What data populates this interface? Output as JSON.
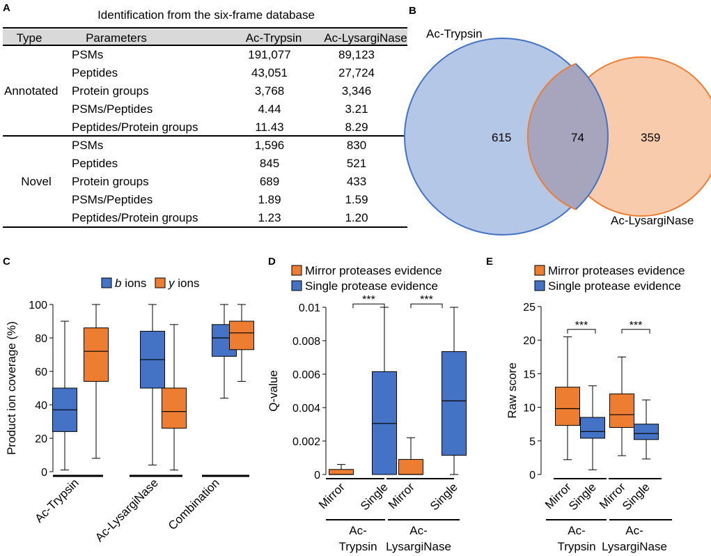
{
  "panel_labels": [
    "A",
    "B",
    "C",
    "D",
    "E"
  ],
  "colors": {
    "blue": "#4472c4",
    "orange": "#ed7d31",
    "venn_blue_fill": "#b4c7e7",
    "venn_orange_fill": "#f8cbad",
    "venn_overlap_fill": "#a7a5bd"
  },
  "chart_data": [
    {
      "panel": "A",
      "type": "table",
      "title": "Identification from the six-frame database",
      "columns": [
        "Type",
        "Parameters",
        "Ac-Trypsin",
        "Ac-LysargiNase"
      ],
      "groups": [
        {
          "type": "Annotated",
          "rows": [
            [
              "PSMs",
              "191,077",
              "89,123"
            ],
            [
              "Peptides",
              "43,051",
              "27,724"
            ],
            [
              "Protein groups",
              "3,768",
              "3,346"
            ],
            [
              "PSMs/Peptides",
              "4.44",
              "3.21"
            ],
            [
              "Peptides/Protein groups",
              "11.43",
              "8.29"
            ]
          ]
        },
        {
          "type": "Novel",
          "rows": [
            [
              "PSMs",
              "1,596",
              "830"
            ],
            [
              "Peptides",
              "845",
              "521"
            ],
            [
              "Protein groups",
              "689",
              "433"
            ],
            [
              "PSMs/Peptides",
              "1.89",
              "1.59"
            ],
            [
              "Peptides/Protein groups",
              "1.23",
              "1.20"
            ]
          ]
        }
      ]
    },
    {
      "panel": "B",
      "type": "venn",
      "sets": [
        "Ac-Trypsin",
        "Ac-LysargiNase"
      ],
      "values": {
        "only_a": 615,
        "both": 74,
        "only_b": 359
      }
    },
    {
      "panel": "C",
      "type": "boxplot",
      "ylabel": "Product ion coverage (%)",
      "ylim": [
        0,
        100
      ],
      "yticks": [
        0,
        20,
        40,
        60,
        80,
        100
      ],
      "legend": [
        {
          "ital": "b",
          "rest": " ions",
          "color": "blue"
        },
        {
          "ital": "y",
          "rest": " ions",
          "color": "orange"
        }
      ],
      "groups": [
        "Ac-Trypsin",
        "Ac-LysargiNase",
        "Combination"
      ],
      "boxes": [
        {
          "group": 0,
          "series": "b ions",
          "color": "blue",
          "min": 1,
          "q1": 24,
          "median": 37,
          "q3": 50,
          "max": 90
        },
        {
          "group": 0,
          "series": "y ions",
          "color": "orange",
          "min": 8,
          "q1": 54,
          "median": 72,
          "q3": 86,
          "max": 100
        },
        {
          "group": 1,
          "series": "b ions",
          "color": "blue",
          "min": 4,
          "q1": 50,
          "median": 67,
          "q3": 84,
          "max": 100
        },
        {
          "group": 1,
          "series": "y ions",
          "color": "orange",
          "min": 1,
          "q1": 26,
          "median": 36,
          "q3": 50,
          "max": 88
        },
        {
          "group": 2,
          "series": "b ions",
          "color": "blue",
          "min": 44,
          "q1": 69,
          "median": 80,
          "q3": 88,
          "max": 100
        },
        {
          "group": 2,
          "series": "y ions",
          "color": "orange",
          "min": 54,
          "q1": 73,
          "median": 83,
          "q3": 90,
          "max": 100
        }
      ]
    },
    {
      "panel": "D",
      "type": "boxplot",
      "ylabel": "Q-value",
      "ylim": [
        0,
        0.01
      ],
      "yticks": [
        "0",
        "0.002",
        "0.004",
        "0.006",
        "0.008",
        "0.01"
      ],
      "legend": [
        {
          "text": "Mirror proteases evidence",
          "color": "orange"
        },
        {
          "text": "Single protease evidence",
          "color": "blue"
        }
      ],
      "sig": "***",
      "subgroups": [
        "Mirror",
        "Single"
      ],
      "groups": [
        [
          "Ac-",
          "Trypsin"
        ],
        [
          "Ac-",
          "LysargiNase"
        ]
      ],
      "boxes": [
        {
          "group": 0,
          "series": "Mirror",
          "color": "orange",
          "min": 0,
          "q1": 0,
          "median": 0,
          "q3": 0.0003,
          "max": 0.0006
        },
        {
          "group": 0,
          "series": "Single",
          "color": "blue",
          "min": 0,
          "q1": 0,
          "median": 0.00305,
          "q3": 0.00615,
          "max": 0.01
        },
        {
          "group": 1,
          "series": "Mirror",
          "color": "orange",
          "min": 0,
          "q1": 0,
          "median": 0,
          "q3": 0.0009,
          "max": 0.0022
        },
        {
          "group": 1,
          "series": "Single",
          "color": "blue",
          "min": 0,
          "q1": 0.00115,
          "median": 0.0044,
          "q3": 0.00735,
          "max": 0.01
        }
      ]
    },
    {
      "panel": "E",
      "type": "boxplot",
      "ylabel": "Raw score",
      "ylim": [
        0,
        25
      ],
      "yticks": [
        0,
        5,
        10,
        15,
        20,
        25
      ],
      "legend": [
        {
          "text": "Mirror proteases evidence",
          "color": "orange"
        },
        {
          "text": "Single protease evidence",
          "color": "blue"
        }
      ],
      "sig": "***",
      "subgroups": [
        "Mirror",
        "Single"
      ],
      "groups": [
        [
          "Ac-",
          "Trypsin"
        ],
        [
          "Ac-",
          "LysargiNase"
        ]
      ],
      "boxes": [
        {
          "group": 0,
          "series": "Mirror",
          "color": "orange",
          "min": 2.2,
          "q1": 7.3,
          "median": 9.8,
          "q3": 13.0,
          "max": 20.5
        },
        {
          "group": 0,
          "series": "Single",
          "color": "blue",
          "min": 0.7,
          "q1": 5.4,
          "median": 6.4,
          "q3": 8.5,
          "max": 13.2
        },
        {
          "group": 1,
          "series": "Mirror",
          "color": "orange",
          "min": 2.8,
          "q1": 7.0,
          "median": 8.9,
          "q3": 12.0,
          "max": 17.5
        },
        {
          "group": 1,
          "series": "Single",
          "color": "blue",
          "min": 2.3,
          "q1": 5.2,
          "median": 6.1,
          "q3": 7.5,
          "max": 11.1
        }
      ]
    }
  ]
}
